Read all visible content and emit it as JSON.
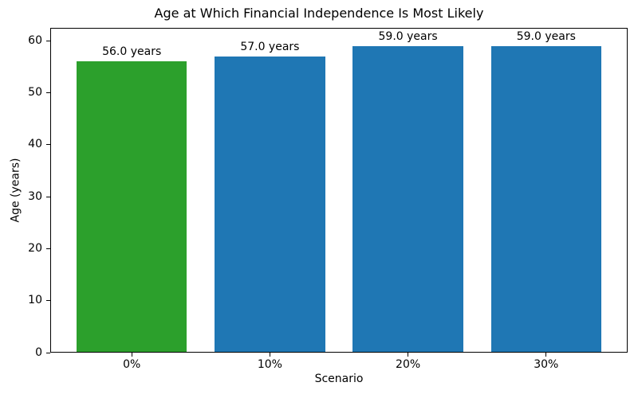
{
  "chart_data": {
    "type": "bar",
    "title": "Age at Which Financial Independence Is Most Likely",
    "xlabel": "Scenario",
    "ylabel": "Age (years)",
    "categories": [
      "0%",
      "10%",
      "20%",
      "30%"
    ],
    "values": [
      56.0,
      57.0,
      59.0,
      59.0
    ],
    "bar_labels": [
      "56.0 years",
      "57.0 years",
      "59.0 years",
      "59.0 years"
    ],
    "bar_colors": [
      "#2ca02c",
      "#1f77b4",
      "#1f77b4",
      "#1f77b4"
    ],
    "yticks": [
      0,
      10,
      20,
      30,
      40,
      50,
      60
    ],
    "ylim": [
      0,
      62.5
    ],
    "grid": false,
    "legend": null,
    "background_color": "#ffffff",
    "text_color": "#000000",
    "spine_color": "#000000"
  }
}
